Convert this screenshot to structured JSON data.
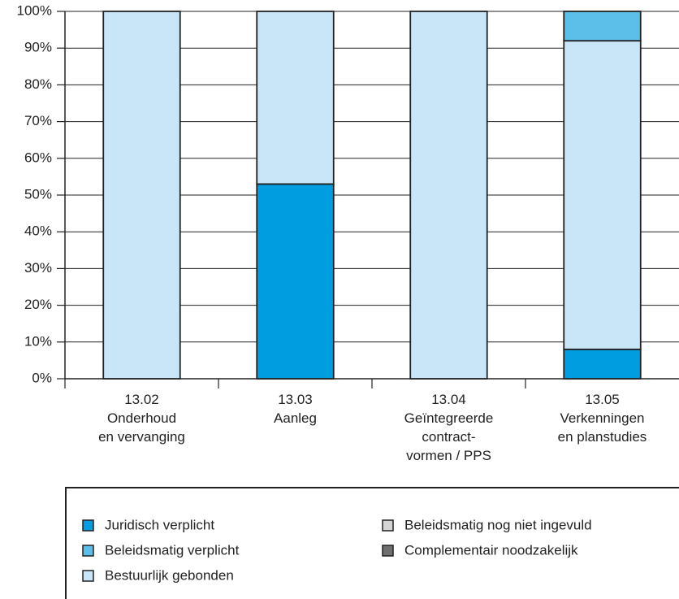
{
  "chart_data": {
    "type": "stacked_bar",
    "categories": [
      "13.02\nOnderhoud\nen vervanging",
      "13.03\nAanleg",
      "13.04\nGeïntegreerde\ncontract-\nvormen / PPS",
      "13.05\nVerkenningen\nen planstudies"
    ],
    "series": [
      {
        "name": "Juridisch verplicht",
        "color": "#009ee0",
        "values": [
          0,
          53,
          0,
          8
        ]
      },
      {
        "name": "Beleidsmatig verplicht",
        "color": "#5bbfea",
        "values": [
          0,
          0,
          0,
          8
        ]
      },
      {
        "name": "Bestuurlijk gebonden",
        "color": "#c9e6f8",
        "values": [
          100,
          47,
          100,
          84
        ]
      },
      {
        "name": "Beleidsmatig nog niet ingevuld",
        "color": "#d4d4d4",
        "values": [
          0,
          0,
          0,
          0
        ]
      },
      {
        "name": "Complementair noodzakelijk",
        "color": "#6f6f6f",
        "values": [
          0,
          0,
          0,
          0
        ]
      }
    ],
    "ylim": [
      0,
      100
    ],
    "yticks": [
      {
        "value": 0,
        "label": "0%"
      },
      {
        "value": 10,
        "label": "10%"
      },
      {
        "value": 20,
        "label": "20%"
      },
      {
        "value": 30,
        "label": "30%"
      },
      {
        "value": 40,
        "label": "40%"
      },
      {
        "value": 50,
        "label": "50%"
      },
      {
        "value": 60,
        "label": "60%"
      },
      {
        "value": 70,
        "label": "70%"
      },
      {
        "value": 80,
        "label": "80%"
      },
      {
        "value": 90,
        "label": "90%"
      },
      {
        "value": 100,
        "label": "100%"
      }
    ],
    "grid": true
  }
}
